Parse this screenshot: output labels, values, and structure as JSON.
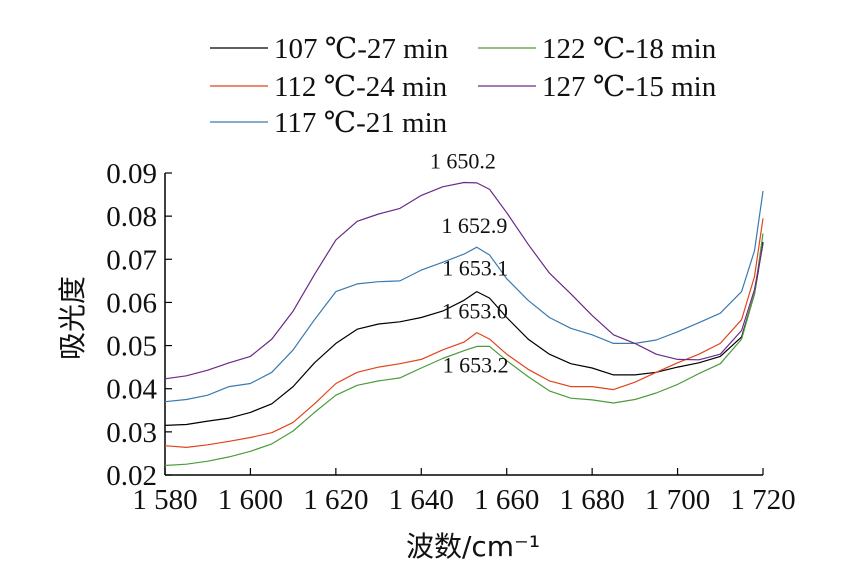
{
  "chart_data": {
    "type": "line",
    "xlabel": "波数/cm⁻¹",
    "ylabel": "吸光度",
    "xlim": [
      1580,
      1720
    ],
    "ylim": [
      0.02,
      0.09
    ],
    "xticks": [
      1580,
      1600,
      1620,
      1640,
      1660,
      1680,
      1700,
      1720
    ],
    "xtick_labels": [
      "1 580",
      "1 600",
      "1 620",
      "1 640",
      "1 660",
      "1 680",
      "1 700",
      "1 720"
    ],
    "yticks": [
      0.02,
      0.03,
      0.04,
      0.05,
      0.06,
      0.07,
      0.08,
      0.09
    ],
    "ytick_labels": [
      "0.02",
      "0.03",
      "0.04",
      "0.05",
      "0.06",
      "0.07",
      "0.08",
      "0.09"
    ],
    "grid": false,
    "legend_position": "top",
    "series": [
      {
        "name": "107 ℃-27 min",
        "color": "#000000",
        "x": [
          1580,
          1585,
          1590,
          1595,
          1600,
          1605,
          1610,
          1615,
          1620,
          1625,
          1630,
          1635,
          1640,
          1645,
          1650,
          1653,
          1656,
          1660,
          1665,
          1670,
          1675,
          1680,
          1685,
          1690,
          1695,
          1700,
          1705,
          1710,
          1715,
          1718,
          1720
        ],
        "y": [
          0.0315,
          0.0317,
          0.0325,
          0.0332,
          0.0345,
          0.0365,
          0.0405,
          0.046,
          0.0505,
          0.0538,
          0.055,
          0.0555,
          0.0565,
          0.058,
          0.0605,
          0.0625,
          0.061,
          0.0565,
          0.0515,
          0.048,
          0.0458,
          0.0448,
          0.0432,
          0.0432,
          0.0438,
          0.045,
          0.046,
          0.0475,
          0.052,
          0.062,
          0.074
        ]
      },
      {
        "name": "112 ℃-24 min",
        "color": "#e0451b",
        "x": [
          1580,
          1585,
          1590,
          1595,
          1600,
          1605,
          1610,
          1615,
          1620,
          1625,
          1630,
          1635,
          1640,
          1645,
          1650,
          1653,
          1656,
          1660,
          1665,
          1670,
          1675,
          1680,
          1685,
          1690,
          1695,
          1700,
          1705,
          1710,
          1715,
          1718,
          1720
        ],
        "y": [
          0.0268,
          0.0264,
          0.027,
          0.0278,
          0.0287,
          0.0298,
          0.0322,
          0.0365,
          0.0412,
          0.0438,
          0.045,
          0.0458,
          0.0468,
          0.049,
          0.0508,
          0.053,
          0.0515,
          0.048,
          0.0445,
          0.0418,
          0.0405,
          0.0405,
          0.0398,
          0.0415,
          0.0438,
          0.046,
          0.048,
          0.0505,
          0.056,
          0.066,
          0.0795
        ]
      },
      {
        "name": "117 ℃-21 min",
        "color": "#3a7ab0",
        "x": [
          1580,
          1585,
          1590,
          1595,
          1600,
          1605,
          1610,
          1615,
          1620,
          1625,
          1630,
          1635,
          1640,
          1645,
          1650,
          1653,
          1656,
          1660,
          1665,
          1670,
          1675,
          1680,
          1685,
          1690,
          1695,
          1700,
          1705,
          1710,
          1715,
          1718,
          1720
        ],
        "y": [
          0.037,
          0.0375,
          0.0385,
          0.0405,
          0.0412,
          0.0438,
          0.049,
          0.056,
          0.0625,
          0.0643,
          0.0648,
          0.065,
          0.0675,
          0.0693,
          0.0712,
          0.0728,
          0.071,
          0.0655,
          0.0605,
          0.0565,
          0.054,
          0.0525,
          0.0505,
          0.0505,
          0.0513,
          0.0532,
          0.0553,
          0.0575,
          0.0625,
          0.072,
          0.0858
        ]
      },
      {
        "name": "122 ℃-18 min",
        "color": "#4e9a3e",
        "x": [
          1580,
          1585,
          1590,
          1595,
          1600,
          1605,
          1610,
          1615,
          1620,
          1625,
          1630,
          1635,
          1640,
          1645,
          1650,
          1653,
          1656,
          1660,
          1665,
          1670,
          1675,
          1680,
          1685,
          1690,
          1695,
          1700,
          1705,
          1710,
          1715,
          1718,
          1720
        ],
        "y": [
          0.0222,
          0.0225,
          0.0232,
          0.0242,
          0.0255,
          0.0272,
          0.0302,
          0.0345,
          0.0385,
          0.0408,
          0.0418,
          0.0425,
          0.0448,
          0.047,
          0.0488,
          0.0498,
          0.0498,
          0.0465,
          0.0428,
          0.0395,
          0.0378,
          0.0374,
          0.0367,
          0.0375,
          0.039,
          0.041,
          0.0435,
          0.0458,
          0.0515,
          0.062,
          0.076
        ]
      },
      {
        "name": "127 ℃-15 min",
        "color": "#6a2a87",
        "x": [
          1580,
          1585,
          1590,
          1595,
          1600,
          1605,
          1610,
          1615,
          1620,
          1625,
          1630,
          1635,
          1640,
          1645,
          1650,
          1653,
          1656,
          1660,
          1665,
          1670,
          1675,
          1680,
          1685,
          1690,
          1695,
          1700,
          1705,
          1710,
          1715,
          1718,
          1720
        ],
        "y": [
          0.0423,
          0.043,
          0.0443,
          0.046,
          0.0475,
          0.0515,
          0.058,
          0.0665,
          0.0745,
          0.0788,
          0.0805,
          0.0818,
          0.0848,
          0.0868,
          0.0878,
          0.0877,
          0.0862,
          0.0808,
          0.0735,
          0.0668,
          0.062,
          0.057,
          0.0525,
          0.0505,
          0.048,
          0.0468,
          0.0467,
          0.048,
          0.0535,
          0.063,
          0.0735
        ]
      }
    ],
    "annotations": [
      {
        "text": "1 650.2",
        "x": 1650.2,
        "y": 0.0878
      },
      {
        "text": "1 652.9",
        "x": 1652.9,
        "y": 0.0728
      },
      {
        "text": "1 653.1",
        "x": 1653.1,
        "y": 0.0625
      },
      {
        "text": "1 653.0",
        "x": 1653.0,
        "y": 0.053
      },
      {
        "text": "1 653.2",
        "x": 1653.2,
        "y": 0.0498
      }
    ]
  }
}
